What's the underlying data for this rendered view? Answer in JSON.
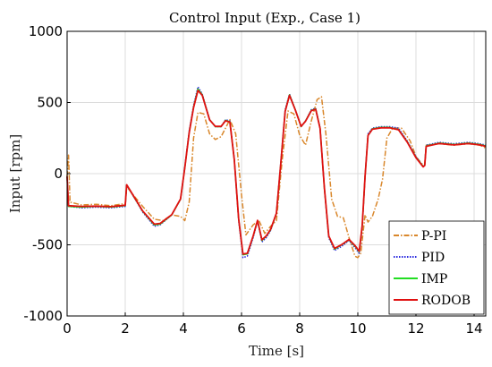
{
  "chart_data": {
    "type": "line",
    "title": "Control Input (Exp., Case 1)",
    "xlabel": "Time [s]",
    "ylabel": "Input [rpm]",
    "xlim": [
      0,
      14.4
    ],
    "ylim": [
      -1000,
      1000
    ],
    "x_ticks": [
      0,
      2,
      4,
      6,
      8,
      10,
      12,
      14
    ],
    "y_ticks": [
      -1000,
      -500,
      0,
      500,
      1000
    ],
    "x_tick_labels": [
      "0",
      "2",
      "4",
      "6",
      "8",
      "10",
      "12",
      "14"
    ],
    "y_tick_labels": [
      "-1000",
      "-500",
      "0",
      "500",
      "1000"
    ],
    "grid": true,
    "legend_position": "bottom-right",
    "series": [
      {
        "name": "P-PI",
        "color": "#d9872b",
        "dash": "6,2,1.5,2",
        "points": [
          [
            0,
            -20
          ],
          [
            0.05,
            130
          ],
          [
            0.1,
            -200
          ],
          [
            0.5,
            -220
          ],
          [
            1,
            -215
          ],
          [
            1.5,
            -225
          ],
          [
            2.0,
            -210
          ],
          [
            2.05,
            -90
          ],
          [
            2.2,
            -130
          ],
          [
            2.6,
            -230
          ],
          [
            3.0,
            -320
          ],
          [
            3.3,
            -330
          ],
          [
            3.6,
            -290
          ],
          [
            3.9,
            -300
          ],
          [
            4.05,
            -330
          ],
          [
            4.2,
            -200
          ],
          [
            4.35,
            250
          ],
          [
            4.5,
            430
          ],
          [
            4.7,
            420
          ],
          [
            4.9,
            280
          ],
          [
            5.1,
            240
          ],
          [
            5.3,
            260
          ],
          [
            5.45,
            320
          ],
          [
            5.6,
            380
          ],
          [
            5.8,
            280
          ],
          [
            6.0,
            -150
          ],
          [
            6.15,
            -430
          ],
          [
            6.4,
            -360
          ],
          [
            6.6,
            -330
          ],
          [
            6.8,
            -420
          ],
          [
            7.0,
            -370
          ],
          [
            7.2,
            -330
          ],
          [
            7.4,
            100
          ],
          [
            7.6,
            440
          ],
          [
            7.8,
            420
          ],
          [
            8.0,
            270
          ],
          [
            8.2,
            200
          ],
          [
            8.4,
            370
          ],
          [
            8.6,
            520
          ],
          [
            8.75,
            540
          ],
          [
            8.9,
            280
          ],
          [
            9.1,
            -180
          ],
          [
            9.3,
            -300
          ],
          [
            9.5,
            -310
          ],
          [
            9.7,
            -450
          ],
          [
            9.9,
            -580
          ],
          [
            10.0,
            -590
          ],
          [
            10.1,
            -560
          ],
          [
            10.25,
            -290
          ],
          [
            10.35,
            -340
          ],
          [
            10.5,
            -300
          ],
          [
            10.7,
            -180
          ],
          [
            10.85,
            -40
          ],
          [
            11.0,
            250
          ],
          [
            11.2,
            320
          ],
          [
            11.5,
            320
          ],
          [
            11.8,
            230
          ],
          [
            12.0,
            120
          ],
          [
            12.2,
            70
          ],
          [
            12.3,
            60
          ],
          [
            12.35,
            200
          ],
          [
            12.8,
            210
          ],
          [
            13.3,
            200
          ],
          [
            13.8,
            210
          ],
          [
            14.2,
            200
          ],
          [
            14.4,
            180
          ]
        ]
      },
      {
        "name": "PID",
        "color": "#2a2adf",
        "dash": "1.5,1.5",
        "points": [
          [
            0,
            -20
          ],
          [
            0.05,
            -230
          ],
          [
            0.5,
            -240
          ],
          [
            1,
            -235
          ],
          [
            1.5,
            -240
          ],
          [
            2.0,
            -230
          ],
          [
            2.05,
            -80
          ],
          [
            2.2,
            -130
          ],
          [
            2.6,
            -270
          ],
          [
            3.0,
            -370
          ],
          [
            3.2,
            -360
          ],
          [
            3.6,
            -290
          ],
          [
            3.9,
            -180
          ],
          [
            4.05,
            50
          ],
          [
            4.2,
            300
          ],
          [
            4.35,
            480
          ],
          [
            4.5,
            610
          ],
          [
            4.65,
            560
          ],
          [
            4.9,
            380
          ],
          [
            5.1,
            330
          ],
          [
            5.3,
            330
          ],
          [
            5.45,
            380
          ],
          [
            5.6,
            370
          ],
          [
            5.75,
            100
          ],
          [
            5.9,
            -330
          ],
          [
            6.05,
            -590
          ],
          [
            6.2,
            -580
          ],
          [
            6.4,
            -450
          ],
          [
            6.55,
            -330
          ],
          [
            6.7,
            -480
          ],
          [
            6.85,
            -450
          ],
          [
            7.0,
            -400
          ],
          [
            7.2,
            -280
          ],
          [
            7.35,
            80
          ],
          [
            7.5,
            450
          ],
          [
            7.65,
            560
          ],
          [
            7.85,
            450
          ],
          [
            8.05,
            330
          ],
          [
            8.2,
            370
          ],
          [
            8.4,
            450
          ],
          [
            8.55,
            460
          ],
          [
            8.7,
            320
          ],
          [
            8.85,
            -100
          ],
          [
            9.0,
            -450
          ],
          [
            9.2,
            -540
          ],
          [
            9.45,
            -510
          ],
          [
            9.7,
            -470
          ],
          [
            9.9,
            -520
          ],
          [
            10.05,
            -560
          ],
          [
            10.15,
            -380
          ],
          [
            10.25,
            -20
          ],
          [
            10.35,
            280
          ],
          [
            10.5,
            320
          ],
          [
            10.8,
            330
          ],
          [
            11.1,
            330
          ],
          [
            11.4,
            320
          ],
          [
            11.7,
            230
          ],
          [
            12.0,
            120
          ],
          [
            12.25,
            50
          ],
          [
            12.3,
            60
          ],
          [
            12.35,
            200
          ],
          [
            12.8,
            220
          ],
          [
            13.3,
            210
          ],
          [
            13.8,
            220
          ],
          [
            14.2,
            210
          ],
          [
            14.4,
            200
          ]
        ]
      },
      {
        "name": "IMP",
        "color": "#22dd22",
        "dash": "",
        "points": [
          [
            0,
            -20
          ],
          [
            0.05,
            -230
          ],
          [
            0.5,
            -235
          ],
          [
            1,
            -230
          ],
          [
            1.5,
            -235
          ],
          [
            2.0,
            -225
          ],
          [
            2.05,
            -80
          ],
          [
            2.2,
            -130
          ],
          [
            2.6,
            -265
          ],
          [
            3.0,
            -360
          ],
          [
            3.2,
            -355
          ],
          [
            3.6,
            -290
          ],
          [
            3.9,
            -180
          ],
          [
            4.05,
            40
          ],
          [
            4.2,
            290
          ],
          [
            4.35,
            470
          ],
          [
            4.5,
            595
          ],
          [
            4.65,
            555
          ],
          [
            4.9,
            380
          ],
          [
            5.1,
            330
          ],
          [
            5.3,
            330
          ],
          [
            5.45,
            375
          ],
          [
            5.6,
            365
          ],
          [
            5.75,
            100
          ],
          [
            5.9,
            -320
          ],
          [
            6.05,
            -570
          ],
          [
            6.2,
            -565
          ],
          [
            6.4,
            -440
          ],
          [
            6.55,
            -330
          ],
          [
            6.7,
            -470
          ],
          [
            6.85,
            -440
          ],
          [
            7.0,
            -395
          ],
          [
            7.2,
            -280
          ],
          [
            7.35,
            70
          ],
          [
            7.5,
            440
          ],
          [
            7.65,
            555
          ],
          [
            7.85,
            450
          ],
          [
            8.05,
            330
          ],
          [
            8.2,
            370
          ],
          [
            8.4,
            445
          ],
          [
            8.55,
            455
          ],
          [
            8.7,
            320
          ],
          [
            8.85,
            -100
          ],
          [
            9.0,
            -440
          ],
          [
            9.2,
            -530
          ],
          [
            9.45,
            -500
          ],
          [
            9.7,
            -465
          ],
          [
            9.9,
            -510
          ],
          [
            10.05,
            -550
          ],
          [
            10.15,
            -370
          ],
          [
            10.25,
            -20
          ],
          [
            10.35,
            270
          ],
          [
            10.5,
            315
          ],
          [
            10.8,
            325
          ],
          [
            11.1,
            325
          ],
          [
            11.4,
            310
          ],
          [
            11.7,
            225
          ],
          [
            12.0,
            115
          ],
          [
            12.25,
            50
          ],
          [
            12.3,
            60
          ],
          [
            12.35,
            195
          ],
          [
            12.8,
            215
          ],
          [
            13.3,
            205
          ],
          [
            13.8,
            215
          ],
          [
            14.2,
            205
          ],
          [
            14.4,
            195
          ]
        ]
      },
      {
        "name": "RODOB",
        "color": "#e01010",
        "dash": "",
        "points": [
          [
            0,
            -20
          ],
          [
            0.05,
            -225
          ],
          [
            0.5,
            -230
          ],
          [
            1,
            -228
          ],
          [
            1.5,
            -232
          ],
          [
            2.0,
            -222
          ],
          [
            2.05,
            -78
          ],
          [
            2.2,
            -128
          ],
          [
            2.6,
            -262
          ],
          [
            3.0,
            -355
          ],
          [
            3.2,
            -350
          ],
          [
            3.6,
            -288
          ],
          [
            3.9,
            -178
          ],
          [
            4.05,
            42
          ],
          [
            4.2,
            288
          ],
          [
            4.35,
            465
          ],
          [
            4.5,
            585
          ],
          [
            4.65,
            550
          ],
          [
            4.9,
            378
          ],
          [
            5.1,
            332
          ],
          [
            5.3,
            332
          ],
          [
            5.45,
            372
          ],
          [
            5.6,
            362
          ],
          [
            5.75,
            98
          ],
          [
            5.9,
            -318
          ],
          [
            6.05,
            -565
          ],
          [
            6.2,
            -560
          ],
          [
            6.4,
            -438
          ],
          [
            6.55,
            -328
          ],
          [
            6.7,
            -465
          ],
          [
            6.85,
            -438
          ],
          [
            7.0,
            -392
          ],
          [
            7.2,
            -278
          ],
          [
            7.35,
            72
          ],
          [
            7.5,
            438
          ],
          [
            7.65,
            550
          ],
          [
            7.85,
            448
          ],
          [
            8.05,
            332
          ],
          [
            8.2,
            368
          ],
          [
            8.4,
            442
          ],
          [
            8.55,
            452
          ],
          [
            8.7,
            318
          ],
          [
            8.85,
            -98
          ],
          [
            9.0,
            -438
          ],
          [
            9.2,
            -525
          ],
          [
            9.45,
            -498
          ],
          [
            9.7,
            -462
          ],
          [
            9.9,
            -505
          ],
          [
            10.05,
            -545
          ],
          [
            10.15,
            -365
          ],
          [
            10.25,
            -18
          ],
          [
            10.35,
            268
          ],
          [
            10.5,
            312
          ],
          [
            10.8,
            322
          ],
          [
            11.1,
            322
          ],
          [
            11.4,
            308
          ],
          [
            11.7,
            222
          ],
          [
            12.0,
            112
          ],
          [
            12.25,
            48
          ],
          [
            12.3,
            58
          ],
          [
            12.35,
            192
          ],
          [
            12.8,
            212
          ],
          [
            13.3,
            202
          ],
          [
            13.8,
            212
          ],
          [
            14.2,
            202
          ],
          [
            14.4,
            192
          ]
        ]
      }
    ]
  }
}
